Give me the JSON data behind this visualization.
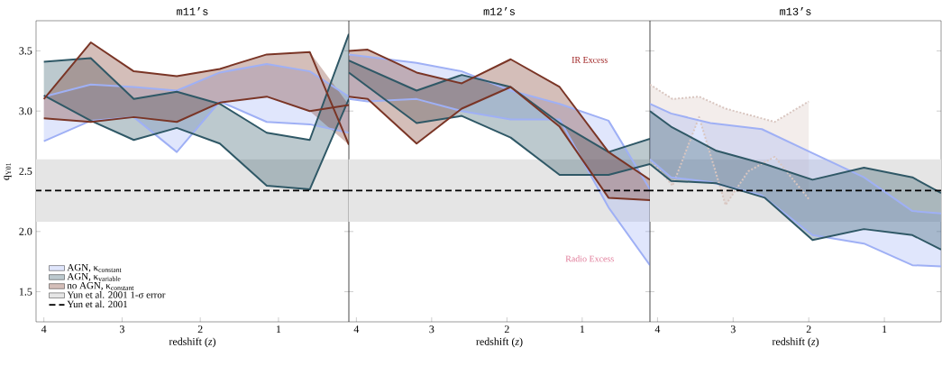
{
  "chart_data": [
    {
      "type": "line",
      "title": "m11’s",
      "xlabel": "redshift (*z*)",
      "ylabel": "q$_{Y01}$",
      "xlim": [
        4.1,
        0.1
      ],
      "ylim": [
        1.25,
        3.75
      ],
      "xticks": [
        4,
        3,
        2,
        1
      ],
      "yticks": [
        1.5,
        {
          "value": 2,
          "label": "2.0"
        },
        2.5,
        {
          "value": 3,
          "label": "3.0"
        },
        3.5
      ],
      "legend": "bottom left",
      "series": [
        {
          "name": "AGN, κ$_{constant}$",
          "color": "#9fb0f5",
          "x": [
            4.0,
            3.4,
            2.85,
            2.3,
            1.75,
            1.15,
            0.6,
            0.1
          ],
          "values": [
            3.12,
            3.22,
            3.2,
            3.17,
            3.32,
            3.39,
            3.33,
            3.12
          ],
          "lower": [
            2.75,
            2.92,
            2.95,
            2.66,
            3.08,
            2.91,
            2.89,
            2.82
          ],
          "upper": [
            3.12,
            3.22,
            3.2,
            3.17,
            3.32,
            3.39,
            3.33,
            3.12
          ]
        },
        {
          "color": "#9fb0f5",
          "x": [
            4.0,
            3.4,
            2.85,
            2.3,
            1.75,
            1.15,
            0.6,
            0.1
          ],
          "values": [
            2.75,
            2.92,
            2.95,
            2.66,
            3.08,
            2.91,
            2.89,
            2.82
          ]
        },
        {
          "name": "AGN, κ$_{variable}$",
          "color": "#2f5866",
          "x": [
            4.0,
            3.4,
            2.85,
            2.3,
            1.75,
            1.15,
            0.6,
            0.1
          ],
          "values": [
            3.41,
            3.44,
            3.1,
            3.16,
            3.06,
            2.82,
            2.76,
            3.64
          ],
          "lower": [
            3.13,
            2.92,
            2.76,
            2.86,
            2.73,
            2.38,
            2.35,
            3.1
          ],
          "upper": [
            3.41,
            3.44,
            3.1,
            3.16,
            3.06,
            2.82,
            2.76,
            3.64
          ]
        },
        {
          "color": "#2f5866",
          "x": [
            4.0,
            3.4,
            2.85,
            2.3,
            1.75,
            1.15,
            0.6,
            0.1
          ],
          "values": [
            3.13,
            2.92,
            2.76,
            2.86,
            2.73,
            2.38,
            2.35,
            3.1
          ]
        },
        {
          "name": "no AGN, κ$_{constant}$",
          "color": "#7a3526",
          "x": [
            4.0,
            3.4,
            2.85,
            2.3,
            1.75,
            1.15,
            0.6,
            0.1
          ],
          "values": [
            3.1,
            3.57,
            3.33,
            3.29,
            3.35,
            3.47,
            3.49,
            2.72
          ],
          "lower": [
            2.94,
            2.91,
            2.95,
            2.91,
            3.07,
            3.12,
            3.0,
            2.72
          ],
          "upper": [
            3.1,
            3.57,
            3.33,
            3.29,
            3.35,
            3.47,
            3.49,
            3.05
          ]
        },
        {
          "color": "#7a3526",
          "x": [
            4.0,
            3.4,
            2.85,
            2.3,
            1.75,
            1.15,
            0.6,
            0.1
          ],
          "values": [
            2.94,
            2.91,
            2.95,
            2.91,
            3.07,
            3.12,
            3.0,
            3.05
          ]
        }
      ],
      "bands": [
        {
          "axis": "y",
          "from": 2.08,
          "to": 2.6,
          "label": "Yun et al. 2001 1-σ error",
          "color": "#e5e5e5"
        }
      ],
      "ref_lines": [
        {
          "axis": "y",
          "value": 2.34,
          "label": "Yun et al. 2001",
          "color": "#000000",
          "line_style": "dashed"
        }
      ]
    },
    {
      "type": "line",
      "title": "m12’s",
      "xlabel": "redshift (*z*)",
      "xlim": [
        4.1,
        0.1
      ],
      "ylim": [
        1.25,
        3.75
      ],
      "xticks": [
        4,
        3,
        2,
        1
      ],
      "yticks": [
        1.5,
        2.0,
        2.5,
        3.0,
        3.5
      ],
      "tick_labels": "x",
      "annotations": [
        "IR Excess",
        "Radio Excess"
      ],
      "series": [
        {
          "color": "#9fb0f5",
          "x": [
            4.1,
            3.85,
            3.2,
            2.6,
            1.95,
            1.3,
            0.65,
            0.1
          ],
          "values": [
            3.47,
            3.45,
            3.4,
            3.33,
            3.17,
            3.06,
            2.92,
            2.35
          ],
          "lower": [
            3.1,
            3.08,
            3.1,
            3.0,
            2.93,
            2.93,
            2.2,
            1.72
          ],
          "upper": [
            3.47,
            3.45,
            3.4,
            3.33,
            3.17,
            3.06,
            2.92,
            2.35
          ]
        },
        {
          "color": "#9fb0f5",
          "x": [
            4.1,
            3.85,
            3.2,
            2.6,
            1.95,
            1.3,
            0.65,
            0.1
          ],
          "values": [
            3.1,
            3.08,
            3.1,
            3.0,
            2.93,
            2.93,
            2.2,
            1.72
          ]
        },
        {
          "color": "#2f5866",
          "x": [
            4.1,
            3.2,
            2.6,
            1.95,
            1.3,
            0.65,
            0.1
          ],
          "values": [
            3.42,
            3.17,
            3.3,
            3.2,
            2.9,
            2.66,
            2.77
          ],
          "lower": [
            3.32,
            2.9,
            2.96,
            2.78,
            2.47,
            2.47,
            2.56
          ],
          "upper": [
            3.42,
            3.17,
            3.3,
            3.2,
            2.9,
            2.66,
            2.77
          ]
        },
        {
          "color": "#2f5866",
          "x": [
            4.1,
            3.2,
            2.6,
            1.95,
            1.3,
            0.65,
            0.1
          ],
          "values": [
            3.32,
            2.9,
            2.96,
            2.78,
            2.47,
            2.47,
            2.56
          ]
        },
        {
          "color": "#7a3526",
          "x": [
            4.1,
            3.85,
            3.2,
            2.6,
            1.95,
            1.3,
            0.65,
            0.1
          ],
          "values": [
            3.5,
            3.51,
            3.32,
            3.23,
            3.43,
            3.2,
            2.66,
            2.43
          ],
          "lower": [
            3.12,
            3.1,
            2.73,
            3.02,
            3.2,
            2.87,
            2.28,
            2.26
          ],
          "upper": [
            3.5,
            3.51,
            3.32,
            3.23,
            3.43,
            3.2,
            2.66,
            2.43
          ]
        },
        {
          "color": "#7a3526",
          "x": [
            4.1,
            3.85,
            3.2,
            2.6,
            1.95,
            1.3,
            0.65,
            0.1
          ],
          "values": [
            3.12,
            3.1,
            2.73,
            3.02,
            3.2,
            2.87,
            2.28,
            2.26
          ]
        }
      ],
      "bands": [
        {
          "axis": "y",
          "from": 2.08,
          "to": 2.6,
          "color": "#e5e5e5"
        }
      ],
      "ref_lines": [
        {
          "axis": "y",
          "value": 2.34,
          "color": "#000000",
          "line_style": "dashed"
        }
      ]
    },
    {
      "type": "line",
      "title": "m13’s",
      "xlabel": "redshift (*z*)",
      "xlim": [
        4.1,
        0.25
      ],
      "ylim": [
        1.25,
        3.75
      ],
      "xticks": [
        4,
        3,
        2,
        1
      ],
      "yticks": [
        1.5,
        2.0,
        2.5,
        3.0,
        3.5
      ],
      "tick_labels": "x",
      "series": [
        {
          "color": "#d9c6c0",
          "line_style": "dotted",
          "x": [
            4.1,
            3.8,
            3.45,
            3.1,
            2.8,
            2.45,
            2.0
          ],
          "values": [
            3.22,
            3.1,
            3.12,
            3.02,
            2.97,
            2.91,
            3.08
          ],
          "lower": [
            2.6,
            2.38,
            2.95,
            2.22,
            2.5,
            2.62,
            2.27
          ],
          "upper": [
            3.22,
            3.1,
            3.12,
            3.02,
            2.97,
            2.91,
            3.08
          ]
        },
        {
          "color": "#d9c6c0",
          "line_style": "dotted",
          "x": [
            4.1,
            3.8,
            3.45,
            3.1,
            2.8,
            2.45,
            2.0
          ],
          "values": [
            2.6,
            2.38,
            2.95,
            2.22,
            2.5,
            2.62,
            2.27
          ]
        },
        {
          "color": "#9fb0f5",
          "x": [
            4.1,
            3.82,
            3.3,
            2.62,
            1.95,
            1.27,
            0.63,
            0.25
          ],
          "values": [
            3.06,
            2.98,
            2.9,
            2.85,
            2.65,
            2.45,
            2.17,
            2.15
          ],
          "lower": [
            2.6,
            2.45,
            2.41,
            2.3,
            1.97,
            1.9,
            1.72,
            1.71
          ],
          "upper": [
            3.06,
            2.98,
            2.9,
            2.85,
            2.65,
            2.45,
            2.17,
            2.15
          ]
        },
        {
          "color": "#9fb0f5",
          "x": [
            4.1,
            3.82,
            3.3,
            2.62,
            1.95,
            1.27,
            0.63,
            0.25
          ],
          "values": [
            2.6,
            2.45,
            2.41,
            2.3,
            1.97,
            1.9,
            1.72,
            1.71
          ]
        },
        {
          "color": "#2f5866",
          "x": [
            4.1,
            3.82,
            3.22,
            2.58,
            1.95,
            1.27,
            0.63,
            0.25
          ],
          "values": [
            3.0,
            2.87,
            2.67,
            2.56,
            2.43,
            2.53,
            2.45,
            2.32
          ],
          "lower": [
            2.56,
            2.42,
            2.4,
            2.28,
            1.93,
            2.02,
            1.97,
            1.85
          ],
          "upper": [
            3.0,
            2.87,
            2.67,
            2.56,
            2.43,
            2.53,
            2.45,
            2.32
          ]
        },
        {
          "color": "#2f5866",
          "x": [
            4.1,
            3.82,
            3.22,
            2.58,
            1.95,
            1.27,
            0.63,
            0.25
          ],
          "values": [
            2.56,
            2.42,
            2.4,
            2.28,
            1.93,
            2.02,
            1.97,
            1.85
          ]
        }
      ],
      "bands": [
        {
          "axis": "y",
          "from": 2.08,
          "to": 2.6,
          "color": "#e5e5e5"
        }
      ],
      "ref_lines": [
        {
          "axis": "y",
          "value": 2.34,
          "color": "#000000",
          "line_style": "dashed"
        }
      ]
    }
  ]
}
